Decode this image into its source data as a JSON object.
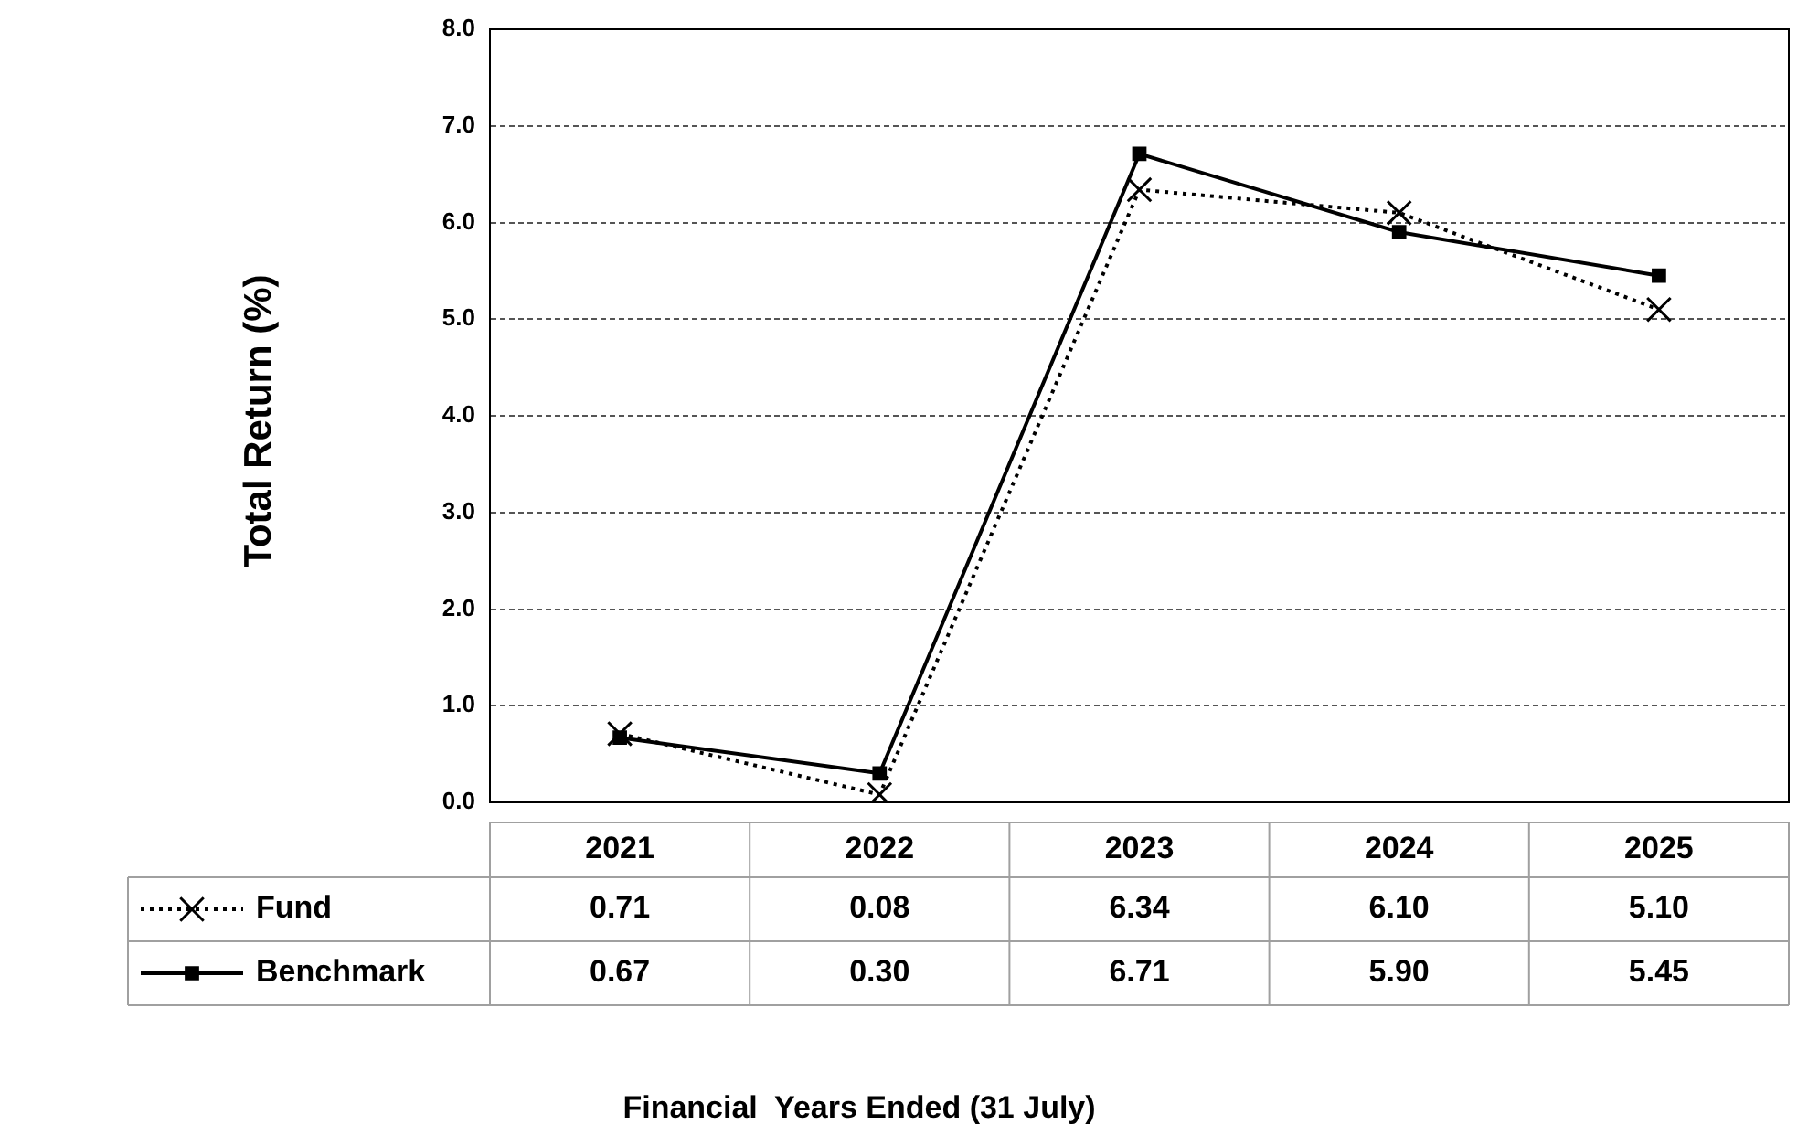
{
  "chart_data": {
    "type": "line",
    "ylabel": "Total Return (%)",
    "annotations": [
      "Financial  Years Ended (31 July)"
    ],
    "categories": [
      "2021",
      "2022",
      "2023",
      "2024",
      "2025"
    ],
    "series": [
      {
        "name": "Fund",
        "color": "#000000",
        "values": [
          0.71,
          0.08,
          6.34,
          6.1,
          5.1
        ],
        "value_labels": [
          "0.71",
          "0.08",
          "6.34",
          "6.10",
          "5.10"
        ],
        "marker": "cross",
        "line_style": "dotted"
      },
      {
        "name": "Benchmark",
        "color": "#000000",
        "values": [
          0.67,
          0.3,
          6.71,
          5.9,
          5.45
        ],
        "value_labels": [
          "0.67",
          "0.30",
          "6.71",
          "5.90",
          "5.45"
        ],
        "marker": "square",
        "line_style": "solid"
      }
    ],
    "ylim": [
      0,
      8
    ],
    "yticks": [
      {
        "value": 0,
        "label": "0.0"
      },
      {
        "value": 1,
        "label": "1.0"
      },
      {
        "value": 2,
        "label": "2.0"
      },
      {
        "value": 3,
        "label": "3.0"
      },
      {
        "value": 4,
        "label": "4.0"
      },
      {
        "value": 5,
        "label": "5.0"
      },
      {
        "value": 6,
        "label": "6.0"
      },
      {
        "value": 7,
        "label": "7.0"
      },
      {
        "value": 8,
        "label": "8.0"
      }
    ],
    "grid": "y",
    "legend": "bottom"
  }
}
